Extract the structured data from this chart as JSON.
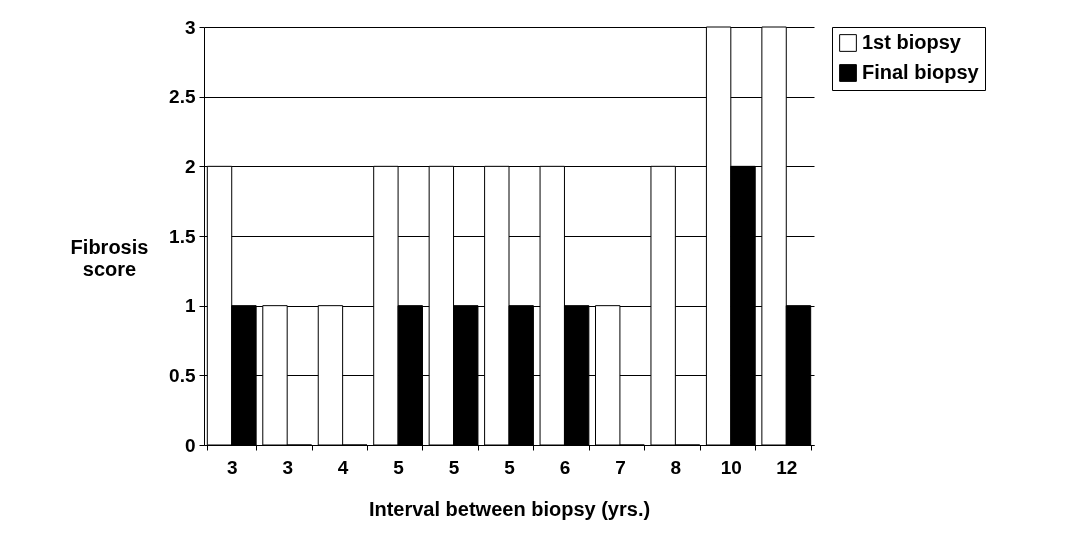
{
  "chart_data": {
    "type": "bar",
    "xlabel": "Interval between biopsy (yrs.)",
    "ylabel": "Fibrosis score",
    "categories": [
      "3",
      "3",
      "4",
      "5",
      "5",
      "5",
      "6",
      "7",
      "8",
      "10",
      "12"
    ],
    "series": [
      {
        "name": "1st biopsy",
        "color": "#ffffff",
        "values": [
          2,
          1,
          1,
          2,
          2,
          2,
          2,
          1,
          2,
          3,
          3
        ]
      },
      {
        "name": "Final biopsy",
        "color": "#000000",
        "values": [
          1,
          0,
          0,
          1,
          1,
          1,
          1,
          0,
          0,
          2,
          1
        ]
      }
    ],
    "ylim": [
      0,
      3
    ],
    "yticks": [
      0,
      0.5,
      1,
      1.5,
      2,
      2.5,
      3
    ],
    "grid": "y",
    "legend": "right"
  }
}
